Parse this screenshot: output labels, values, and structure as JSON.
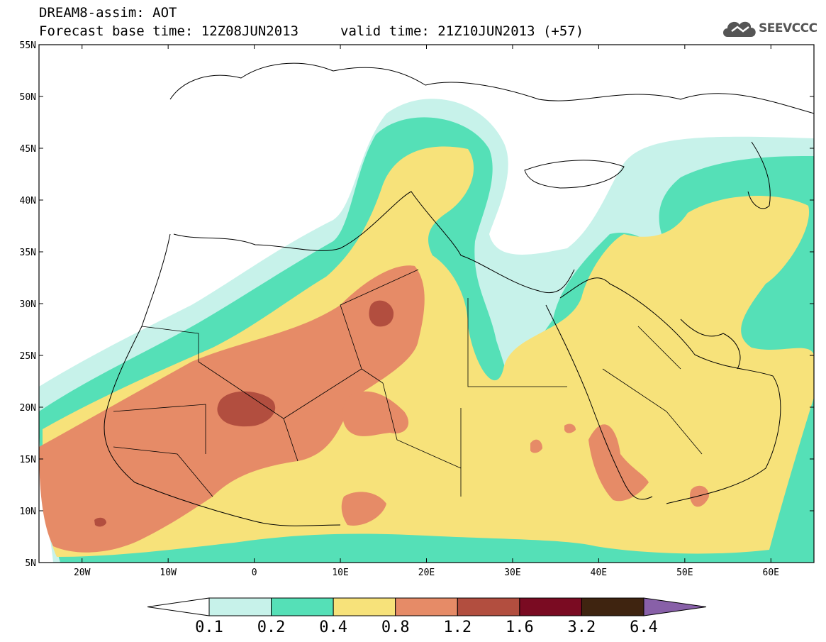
{
  "header": {
    "title": "DREAM8-assim: AOT",
    "base_time": "Forecast base time: 12Z08JUN2013",
    "valid_time": "valid time: 21Z10JUN2013 (+57)",
    "logo_text": "SEEVCCC",
    "logo_icon": "cloud-logo-icon"
  },
  "map": {
    "lat_labels": [
      "55N",
      "50N",
      "45N",
      "40N",
      "35N",
      "30N",
      "25N",
      "20N",
      "15N",
      "10N",
      "5N"
    ],
    "lon_labels": [
      "20W",
      "10W",
      "0",
      "10E",
      "20E",
      "30E",
      "40E",
      "50E",
      "60E"
    ]
  },
  "colorbar": {
    "colors": [
      "#ffffff",
      "#c7f2ea",
      "#55e0b7",
      "#f7e27a",
      "#e68b67",
      "#b24e3f",
      "#7a0b22",
      "#3f2410",
      "#8860a8"
    ],
    "labels": [
      "0.1",
      "0.2",
      "0.4",
      "0.8",
      "1.2",
      "1.6",
      "3.2",
      "6.4"
    ]
  }
}
